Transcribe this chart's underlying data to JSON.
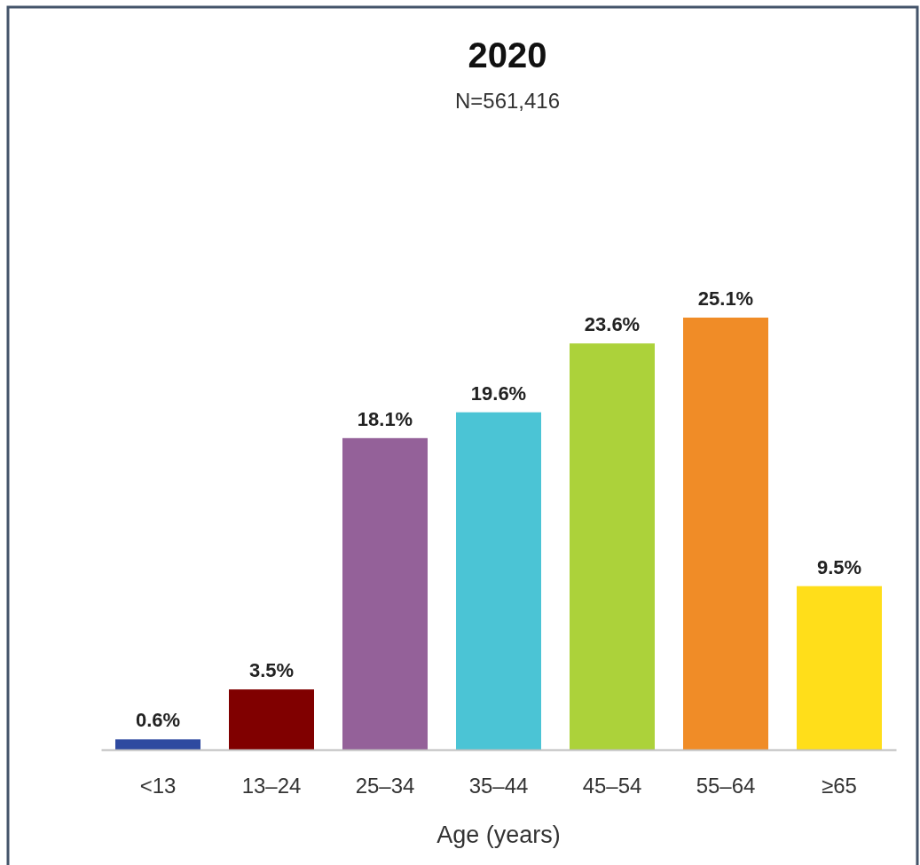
{
  "chart_data": {
    "type": "bar",
    "title": "2020",
    "subtitle": "N=561,416",
    "xlabel": "Age (years)",
    "categories": [
      "<13",
      "13–24",
      "25–34",
      "35–44",
      "45–54",
      "55–64",
      "≥65"
    ],
    "values": [
      0.6,
      3.5,
      18.1,
      19.6,
      23.6,
      25.1,
      9.5
    ],
    "colors": [
      "#2e4aa0",
      "#800000",
      "#946199",
      "#4bc4d5",
      "#acd23a",
      "#f08c27",
      "#ffde1a"
    ],
    "value_labels": [
      "0.6%",
      "3.5%",
      "18.1%",
      "19.6%",
      "23.6%",
      "25.1%",
      "9.5%"
    ]
  }
}
